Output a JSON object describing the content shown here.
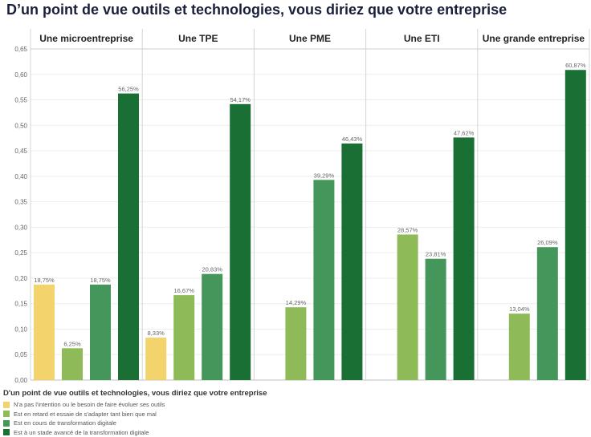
{
  "title": "D’un point de vue outils et technologies, vous diriez que votre entreprise",
  "legend": {
    "title": "D'un point de vue outils et technologies, vous diriez que votre entreprise",
    "items": [
      {
        "label": "N'a pas l'intention ou le besoin de faire évoluer ses outils",
        "color": "#f3d36b"
      },
      {
        "label": "Est en retard et essaie de s'adapter tant bien que mal",
        "color": "#8fba58"
      },
      {
        "label": "Est en cours de transformation digitale",
        "color": "#44965a"
      },
      {
        "label": "Est à un stade avancé de la transformation digitale",
        "color": "#1a6f34"
      }
    ]
  },
  "chart_data": {
    "type": "bar",
    "title": "D’un point de vue outils et technologies, vous diriez que votre entreprise",
    "xlabel": "",
    "ylabel": "",
    "ylim": [
      0,
      0.65
    ],
    "yticks": [
      "0,00",
      "0,05",
      "0,10",
      "0,15",
      "0,20",
      "0,25",
      "0,30",
      "0,35",
      "0,40",
      "0,45",
      "0,50",
      "0,55",
      "0,60",
      "0,65"
    ],
    "grid": true,
    "categories": [
      "Une microentreprise",
      "Une TPE",
      "Une PME",
      "Une ETI",
      "Une grande entreprise"
    ],
    "series": [
      {
        "name": "N'a pas l'intention ou le besoin de faire évoluer ses outils",
        "color": "#f3d36b",
        "values": [
          0.1875,
          0.0833,
          null,
          null,
          null
        ],
        "labels": [
          "18,75%",
          "8,33%",
          null,
          null,
          null
        ]
      },
      {
        "name": "Est en retard et essaie de s'adapter tant bien que mal",
        "color": "#8fba58",
        "values": [
          0.0625,
          0.1667,
          0.1429,
          0.2857,
          0.1304
        ],
        "labels": [
          "6,25%",
          "16,67%",
          "14,29%",
          "28,57%",
          "13,04%"
        ]
      },
      {
        "name": "Est en cours de transformation digitale",
        "color": "#44965a",
        "values": [
          0.1875,
          0.2083,
          0.3929,
          0.2381,
          0.2609
        ],
        "labels": [
          "18,75%",
          "20,83%",
          "39,29%",
          "23,81%",
          "26,09%"
        ]
      },
      {
        "name": "Est à un stade avancé de la transformation digitale",
        "color": "#1a6f34",
        "values": [
          0.5625,
          0.5417,
          0.4643,
          0.4762,
          0.6087
        ],
        "labels": [
          "56,25%",
          "54,17%",
          "46,43%",
          "47,62%",
          "60,87%"
        ]
      }
    ]
  }
}
